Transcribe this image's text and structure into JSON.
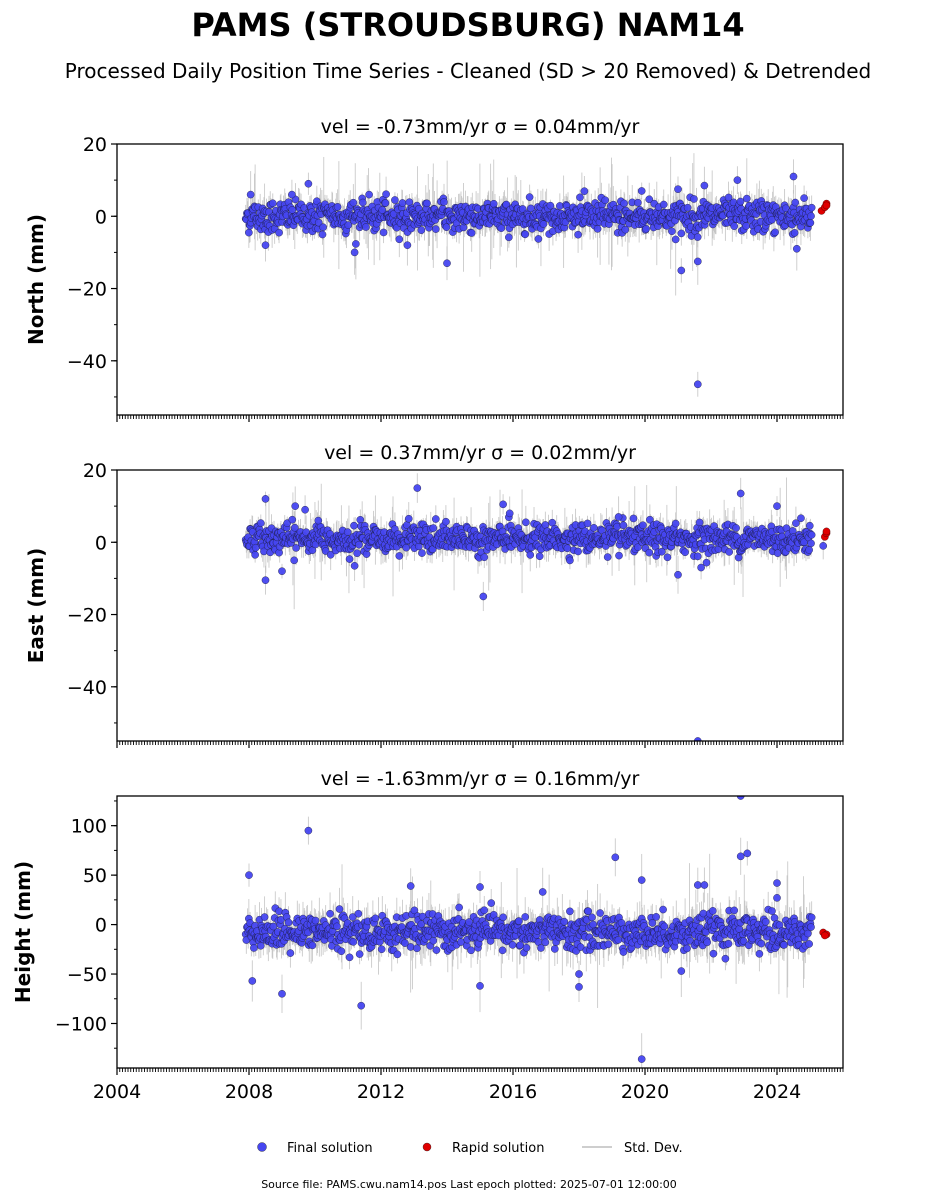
{
  "title": "PAMS (STROUDSBURG) NAM14",
  "subtitle": "Processed Daily Position Time Series - Cleaned (SD > 20 Removed) & Detrended",
  "footer": "Source file: PAMS.cwu.nam14.pos  Last epoch plotted: 2025-07-01 12:00:00",
  "colors": {
    "final": "#4646f0",
    "rapid": "#e00000",
    "stddev": "#bdbdbd",
    "axis": "#000000"
  },
  "legend": [
    {
      "key": "final",
      "label": "Final solution"
    },
    {
      "key": "rapid",
      "label": "Rapid solution"
    },
    {
      "key": "stddev",
      "label": "Std. Dev."
    }
  ],
  "chart_data": [
    {
      "type": "scatter",
      "title": "vel = -0.73mm/yr   σ = 0.04mm/yr",
      "ylabel": "North (mm)",
      "xlim": [
        2004.0,
        2026.0
      ],
      "ylim": [
        -55,
        20
      ],
      "yticks": [
        20,
        0,
        -20,
        -40
      ],
      "xticks": [
        2004,
        2008,
        2012,
        2016,
        2020,
        2024
      ],
      "xtick_labels": [],
      "data_range": [
        2007.9,
        2025.05
      ],
      "band": {
        "mean": 0.0,
        "spread": 2.2
      },
      "outliers": [
        [
          2008.05,
          6.0
        ],
        [
          2008.5,
          -8.0
        ],
        [
          2009.3,
          6.0
        ],
        [
          2009.8,
          9.0
        ],
        [
          2011.2,
          -10.0
        ],
        [
          2012.8,
          -8.0
        ],
        [
          2014.0,
          -13.0
        ],
        [
          2019.9,
          7.0
        ],
        [
          2021.0,
          7.5
        ],
        [
          2021.1,
          -15.0
        ],
        [
          2021.6,
          -12.5
        ],
        [
          2021.6,
          -46.5
        ],
        [
          2021.8,
          8.5
        ],
        [
          2022.8,
          10.0
        ],
        [
          2024.5,
          11.0
        ],
        [
          2024.6,
          -9.0
        ]
      ],
      "rapid": [
        [
          2025.35,
          1.5
        ],
        [
          2025.45,
          2.5
        ],
        [
          2025.5,
          3.5
        ],
        [
          2025.5,
          3.0
        ]
      ]
    },
    {
      "type": "scatter",
      "title": "vel = 0.37mm/yr   σ = 0.02mm/yr",
      "ylabel": "East (mm)",
      "xlim": [
        2004.0,
        2026.0
      ],
      "ylim": [
        -55,
        20
      ],
      "yticks": [
        20,
        0,
        -20,
        -40
      ],
      "xticks": [
        2004,
        2008,
        2012,
        2016,
        2020,
        2024
      ],
      "xtick_labels": [],
      "data_range": [
        2007.9,
        2025.05
      ],
      "band": {
        "mean": 1.0,
        "spread": 2.0
      },
      "outliers": [
        [
          2008.5,
          12.0
        ],
        [
          2008.5,
          -10.5
        ],
        [
          2009.0,
          -8.0
        ],
        [
          2009.4,
          10.0
        ],
        [
          2009.7,
          9.0
        ],
        [
          2010.1,
          6.0
        ],
        [
          2013.1,
          15.0
        ],
        [
          2015.1,
          -15.0
        ],
        [
          2015.7,
          10.5
        ],
        [
          2015.9,
          8.0
        ],
        [
          2019.2,
          7.0
        ],
        [
          2021.0,
          -9.0
        ],
        [
          2021.7,
          -7.0
        ],
        [
          2022.9,
          13.5
        ],
        [
          2024.0,
          10.0
        ],
        [
          2025.4,
          -1.0
        ]
      ],
      "rapid": [
        [
          2025.45,
          1.5
        ],
        [
          2025.5,
          2.5
        ],
        [
          2025.5,
          3.0
        ]
      ],
      "edge_point": [
        2021.6,
        -55
      ]
    },
    {
      "type": "scatter",
      "title": "vel = -1.63mm/yr   σ = 0.16mm/yr",
      "ylabel": "Height (mm)",
      "xlim": [
        2004.0,
        2026.0
      ],
      "ylim": [
        -145,
        130
      ],
      "yticks": [
        100,
        50,
        0,
        -50,
        -100
      ],
      "xticks": [
        2004,
        2008,
        2012,
        2016,
        2020,
        2024
      ],
      "xtick_labels": [
        "2004",
        "2008",
        "2012",
        "2016",
        "2020",
        "2024"
      ],
      "data_range": [
        2007.9,
        2025.05
      ],
      "band": {
        "mean": -8.0,
        "spread": 9.0
      },
      "outliers": [
        [
          2008.0,
          50.0
        ],
        [
          2008.1,
          -57.0
        ],
        [
          2009.0,
          -70.0
        ],
        [
          2009.8,
          95.0
        ],
        [
          2011.4,
          -82.0
        ],
        [
          2012.9,
          39.0
        ],
        [
          2015.0,
          38.0
        ],
        [
          2015.0,
          -62.0
        ],
        [
          2016.9,
          33.0
        ],
        [
          2018.0,
          -50.0
        ],
        [
          2018.0,
          -63.0
        ],
        [
          2019.1,
          68.0
        ],
        [
          2019.9,
          45.0
        ],
        [
          2019.9,
          -136.0
        ],
        [
          2021.1,
          -47.0
        ],
        [
          2021.6,
          40.0
        ],
        [
          2021.8,
          40.0
        ],
        [
          2022.9,
          69.0
        ],
        [
          2023.1,
          72.0
        ],
        [
          2024.0,
          42.0
        ],
        [
          2024.0,
          27.0
        ]
      ],
      "rapid": [
        [
          2025.4,
          -8.0
        ],
        [
          2025.5,
          -10.0
        ],
        [
          2025.45,
          -11.0
        ]
      ],
      "edge_point": [
        2022.9,
        130
      ]
    }
  ]
}
